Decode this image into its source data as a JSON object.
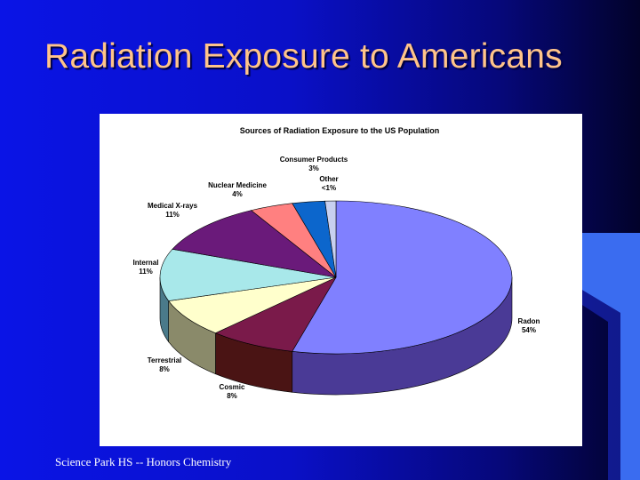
{
  "slide": {
    "title": "Radiation Exposure to Americans",
    "footer": "Science Park HS -- Honors Chemistry",
    "colors": {
      "background": "#0a10c8",
      "title": "#ffc48a",
      "footer": "#ffffff",
      "accent": "#3366ff"
    }
  },
  "chart_data": {
    "type": "pie",
    "title": "Sources of Radiation Exposure to the US Population",
    "style": "3d",
    "slices": [
      {
        "label": "Radon",
        "value_text": "54%",
        "value": 54,
        "color": "#8080ff",
        "side_color": "#4a3a96"
      },
      {
        "label": "Cosmic",
        "value_text": "8%",
        "value": 8,
        "color": "#7a1a4a",
        "side_color": "#4a1414"
      },
      {
        "label": "Terrestrial",
        "value_text": "8%",
        "value": 8,
        "color": "#ffffcc",
        "side_color": "#8a8a6a"
      },
      {
        "label": "Internal",
        "value_text": "11%",
        "value": 11,
        "color": "#a8e8ea",
        "side_color": "#4a7a8a"
      },
      {
        "label": "Medical  X-rays",
        "value_text": "11%",
        "value": 11,
        "color": "#6a1a7a",
        "side_color": "#3a0a4a"
      },
      {
        "label": "Nuclear Medicine",
        "value_text": "4%",
        "value": 4,
        "color": "#ff8080",
        "side_color": "#8a3a3a"
      },
      {
        "label": "Consumer Products",
        "value_text": "3%",
        "value": 3,
        "color": "#0c66cc",
        "side_color": "#063a7a"
      },
      {
        "label": "Other",
        "value_text": "<1%",
        "value": 1,
        "color": "#c8d0f0",
        "side_color": "#7a80a0"
      }
    ]
  }
}
